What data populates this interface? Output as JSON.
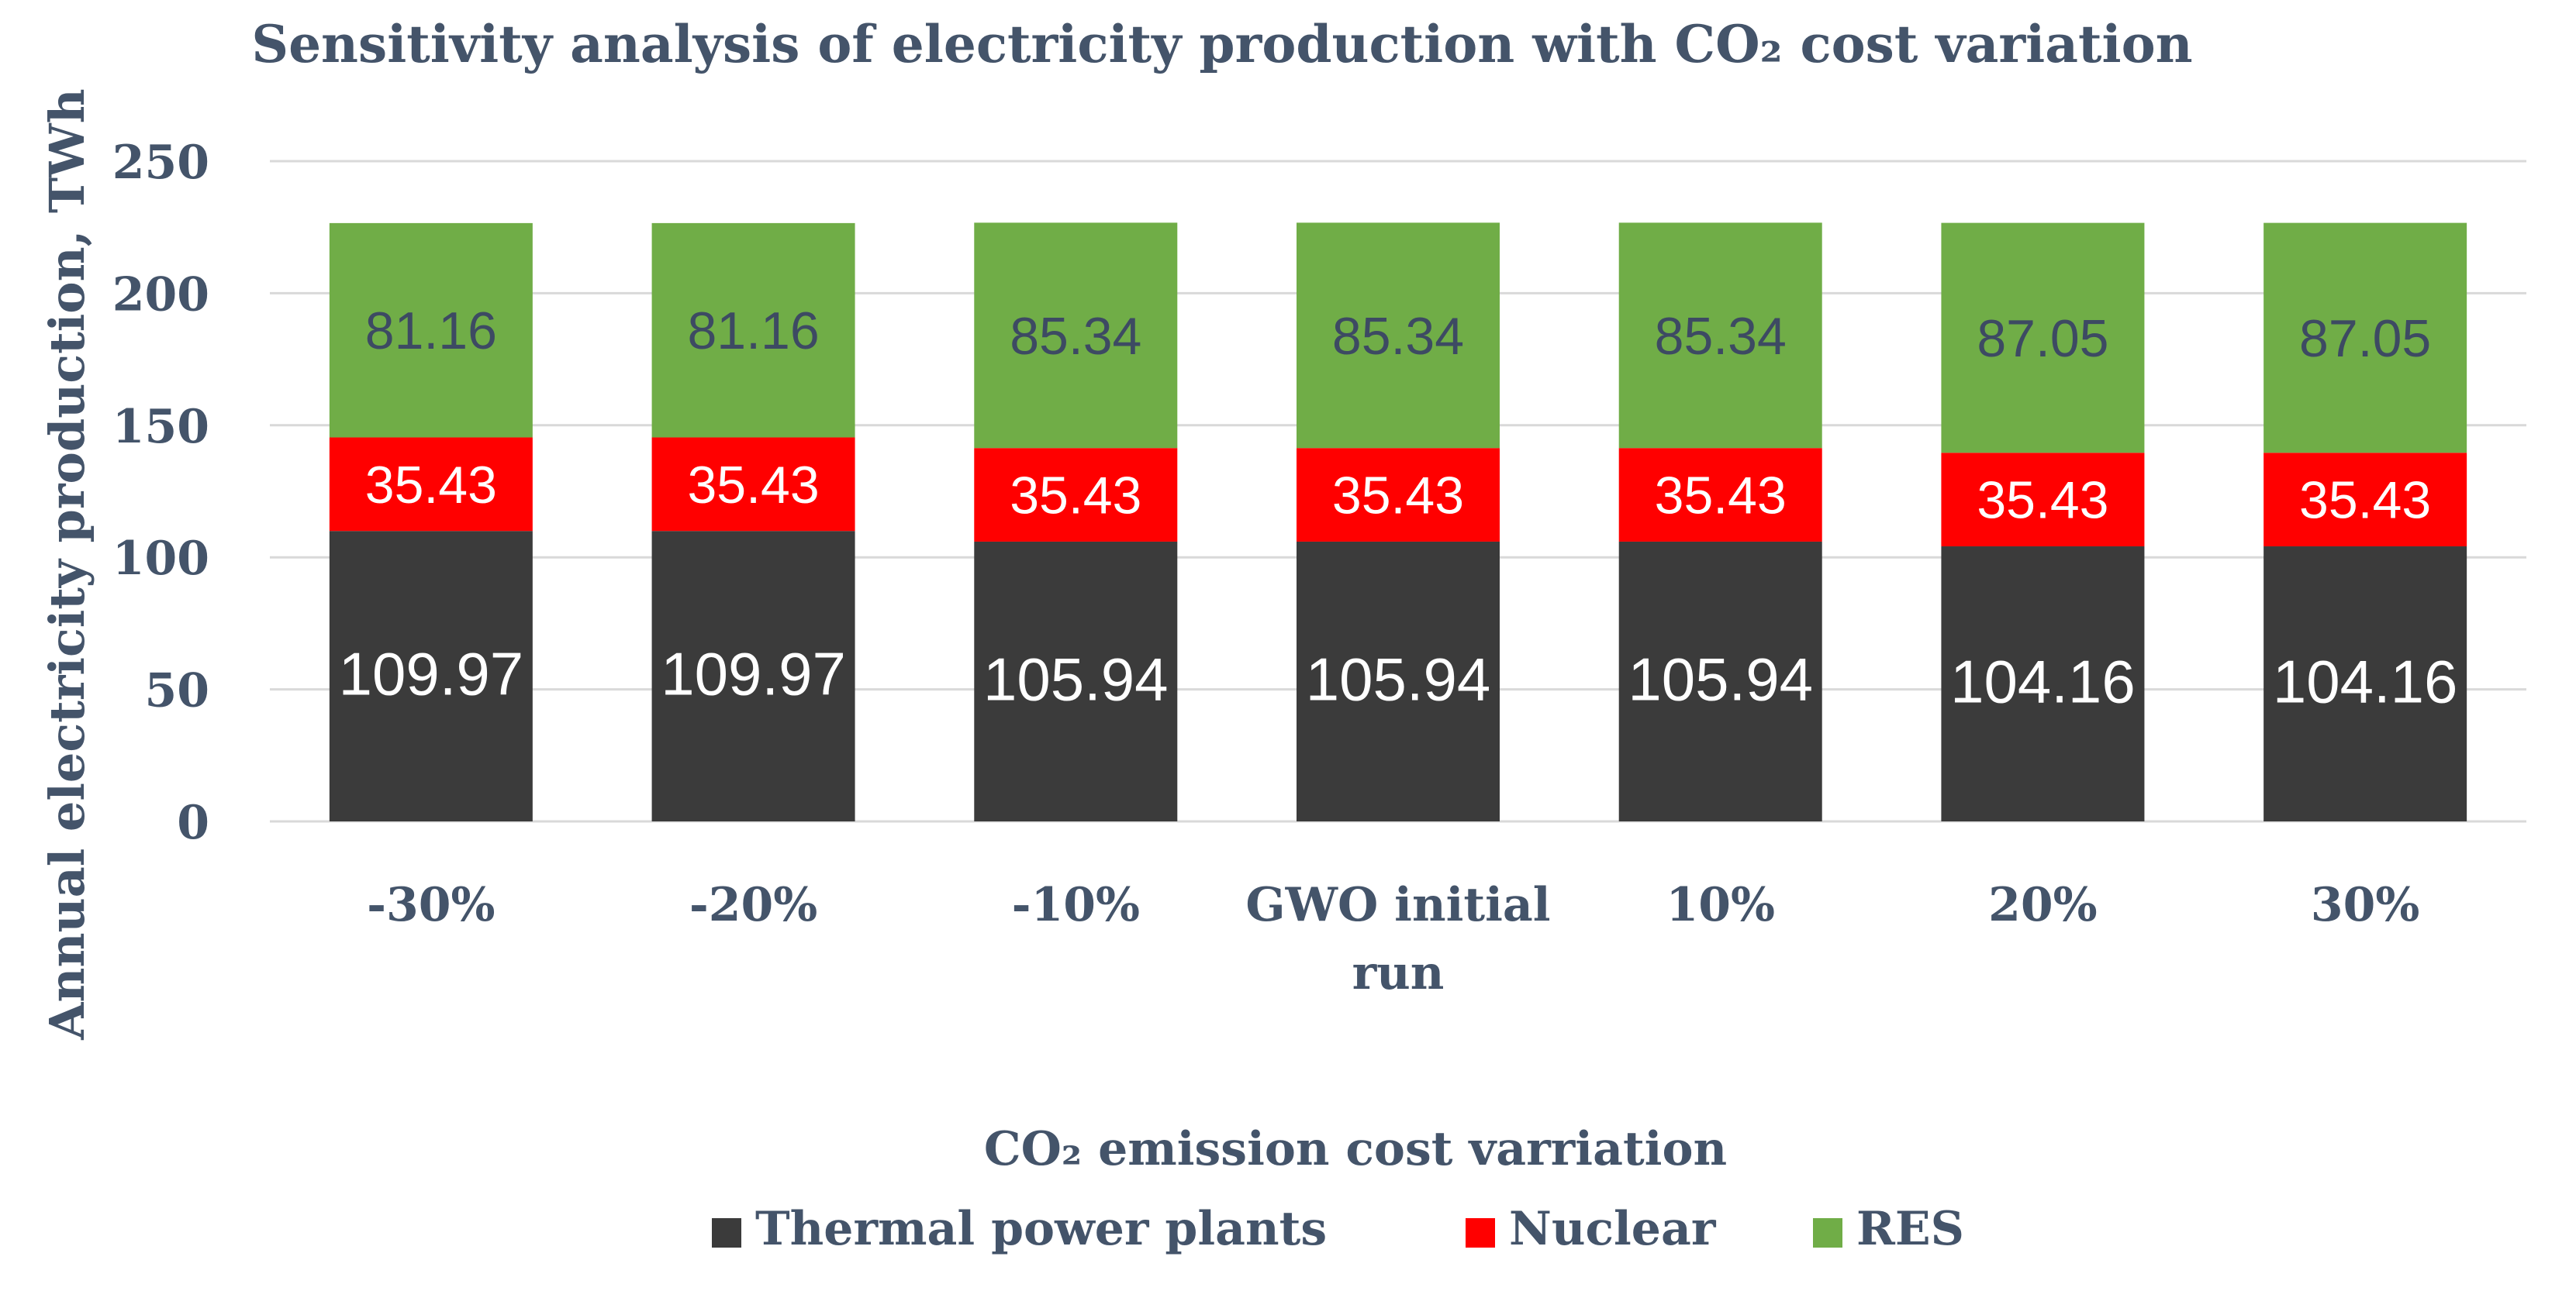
{
  "chart_data": {
    "type": "bar",
    "stacked": true,
    "title": "Sensitivity analysis of electricity production with CO₂ cost variation",
    "xlabel": "CO₂ emission cost varriation",
    "ylabel": "Annual electricity production, TWh",
    "ylim": [
      0,
      250
    ],
    "yticks": [
      0,
      50,
      100,
      150,
      200,
      250
    ],
    "grid": true,
    "legend_position": "bottom",
    "categories": [
      "-30%",
      "-20%",
      "-10%",
      "GWO initial run",
      "10%",
      "20%",
      "30%"
    ],
    "category_lines": [
      [
        "-30%"
      ],
      [
        "-20%"
      ],
      [
        "-10%"
      ],
      [
        "GWO initial",
        "run"
      ],
      [
        "10%"
      ],
      [
        "20%"
      ],
      [
        "30%"
      ]
    ],
    "series": [
      {
        "name": "Thermal power plants",
        "color": "#3b3b3b",
        "label_color": "#ffffff",
        "values": [
          109.97,
          109.97,
          105.94,
          105.94,
          105.94,
          104.16,
          104.16
        ],
        "labels": [
          "109.97",
          "109.97",
          "105.94",
          "105.94",
          "105.94",
          "104.16",
          "104.16"
        ]
      },
      {
        "name": "Nuclear",
        "color": "#ff0000",
        "label_color": "#ffffff",
        "values": [
          35.43,
          35.43,
          35.43,
          35.43,
          35.43,
          35.43,
          35.43
        ],
        "labels": [
          "35.43",
          "35.43",
          "35.43",
          "35.43",
          "35.43",
          "35.43",
          "35.43"
        ]
      },
      {
        "name": "RES",
        "color": "#70ad47",
        "label_color": "#3d4a63",
        "values": [
          81.16,
          81.16,
          85.34,
          85.34,
          85.34,
          87.05,
          87.05
        ],
        "labels": [
          "81.16",
          "81.16",
          "85.34",
          "85.34",
          "85.34",
          "87.05",
          "87.05"
        ]
      }
    ],
    "colors": {
      "text": "#44546a",
      "grid": "#d9d9d9"
    }
  }
}
